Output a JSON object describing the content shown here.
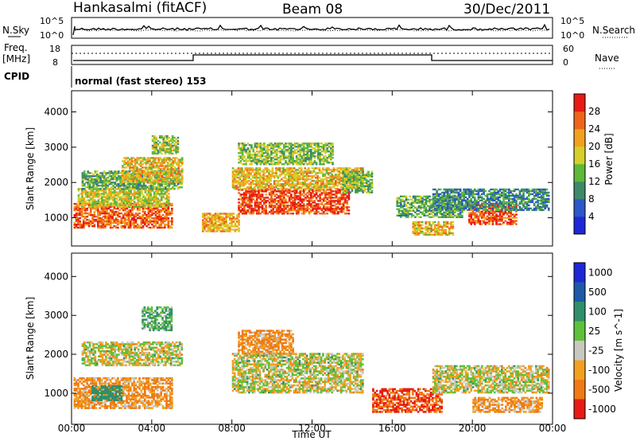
{
  "header": {
    "station": "Hankasalmi (fitACF)",
    "beam": "Beam 08",
    "date": "30/Dec/2011"
  },
  "panels": {
    "nsky": {
      "left_label": "N.Sky",
      "left_ticks": [
        "10^5",
        "10^0"
      ],
      "right_label": "N.Search",
      "right_ticks": [
        "10^5",
        "10^0"
      ]
    },
    "freq": {
      "left_label_1": "Freq.",
      "left_label_2": "[MHz]",
      "left_ticks": [
        "18",
        "8"
      ],
      "right_label": "Nave",
      "right_ticks": [
        "60",
        "0"
      ]
    },
    "cpid": {
      "label": "CPID",
      "text": "normal (fast stereo) 153"
    }
  },
  "chart_data": [
    {
      "type": "heatmap",
      "name": "power",
      "ylabel": "Slant Range [km]",
      "xlabel": "",
      "xlim": [
        "00:00",
        "24:00"
      ],
      "ylim": [
        200,
        4600
      ],
      "yticks": [
        1000,
        2000,
        3000,
        4000
      ],
      "colorbar": {
        "label": "Power [dB]",
        "ticks": [
          4,
          8,
          12,
          16,
          20,
          24,
          28
        ],
        "range": [
          0,
          32
        ]
      },
      "regions": [
        {
          "t": [
            0.1,
            5.0
          ],
          "r": [
            700,
            1400
          ],
          "value": 26
        },
        {
          "t": [
            0.3,
            4.8
          ],
          "r": [
            1300,
            1800
          ],
          "value": 18
        },
        {
          "t": [
            0.5,
            5.5
          ],
          "r": [
            1800,
            2300
          ],
          "value": 13
        },
        {
          "t": [
            2.5,
            5.5
          ],
          "r": [
            2000,
            2700
          ],
          "value": 20
        },
        {
          "t": [
            4.0,
            5.3
          ],
          "r": [
            2800,
            3300
          ],
          "value": 16
        },
        {
          "t": [
            8.3,
            13.8
          ],
          "r": [
            1100,
            1800
          ],
          "value": 28
        },
        {
          "t": [
            8.0,
            14.5
          ],
          "r": [
            1800,
            2400
          ],
          "value": 20
        },
        {
          "t": [
            8.3,
            13.0
          ],
          "r": [
            2500,
            3100
          ],
          "value": 15
        },
        {
          "t": [
            6.5,
            8.3
          ],
          "r": [
            600,
            1100
          ],
          "value": 22
        },
        {
          "t": [
            13.5,
            15.0
          ],
          "r": [
            1700,
            2300
          ],
          "value": 14
        },
        {
          "t": [
            16.2,
            19.5
          ],
          "r": [
            1000,
            1600
          ],
          "value": 13
        },
        {
          "t": [
            17.0,
            19.0
          ],
          "r": [
            500,
            900
          ],
          "value": 20
        },
        {
          "t": [
            19.8,
            22.2
          ],
          "r": [
            800,
            1400
          ],
          "value": 27
        },
        {
          "t": [
            18.0,
            23.8
          ],
          "r": [
            1200,
            1800
          ],
          "value": 10
        }
      ]
    },
    {
      "type": "heatmap",
      "name": "velocity",
      "ylabel": "Slant Range [km]",
      "xlabel": "Time UT",
      "xlim": [
        "00:00",
        "24:00"
      ],
      "ylim": [
        200,
        4600
      ],
      "yticks": [
        1000,
        2000,
        3000,
        4000
      ],
      "xticks": [
        "00:00",
        "04:00",
        "08:00",
        "12:00",
        "16:00",
        "20:00",
        "00:00"
      ],
      "colorbar": {
        "label": "Velocity [m s^-1]",
        "ticks": [
          "1000",
          "500",
          "100",
          "25",
          "-25",
          "-100",
          "-500",
          "-1000"
        ]
      },
      "regions": [
        {
          "t": [
            0.1,
            5.0
          ],
          "r": [
            600,
            1400
          ],
          "value": -100
        },
        {
          "t": [
            0.5,
            5.5
          ],
          "r": [
            1700,
            2300
          ],
          "value": 0
        },
        {
          "t": [
            8.0,
            14.5
          ],
          "r": [
            1000,
            2000
          ],
          "value": 0
        },
        {
          "t": [
            8.3,
            11.0
          ],
          "r": [
            2000,
            2600
          ],
          "value": -100
        },
        {
          "t": [
            15.0,
            18.5
          ],
          "r": [
            500,
            1100
          ],
          "value": -500
        },
        {
          "t": [
            18.0,
            23.8
          ],
          "r": [
            1000,
            1700
          ],
          "value": 0
        },
        {
          "t": [
            20.0,
            23.5
          ],
          "r": [
            500,
            900
          ],
          "value": -100
        },
        {
          "t": [
            3.5,
            5.0
          ],
          "r": [
            2600,
            3200
          ],
          "value": 100
        },
        {
          "t": [
            1.0,
            2.5
          ],
          "r": [
            800,
            1200
          ],
          "value": 300
        }
      ]
    }
  ],
  "colors": {
    "power_scale": [
      "#1f28d6",
      "#2b57c9",
      "#3d8a6a",
      "#5fb83a",
      "#d4cf2a",
      "#f2a11f",
      "#f0641a",
      "#e81b14"
    ],
    "velocity_scale": [
      "#1f28d6",
      "#1e5aa8",
      "#2f8f6a",
      "#5fc13a",
      "#c8c8c0",
      "#f2a11f",
      "#f07a16",
      "#e81b14"
    ]
  }
}
